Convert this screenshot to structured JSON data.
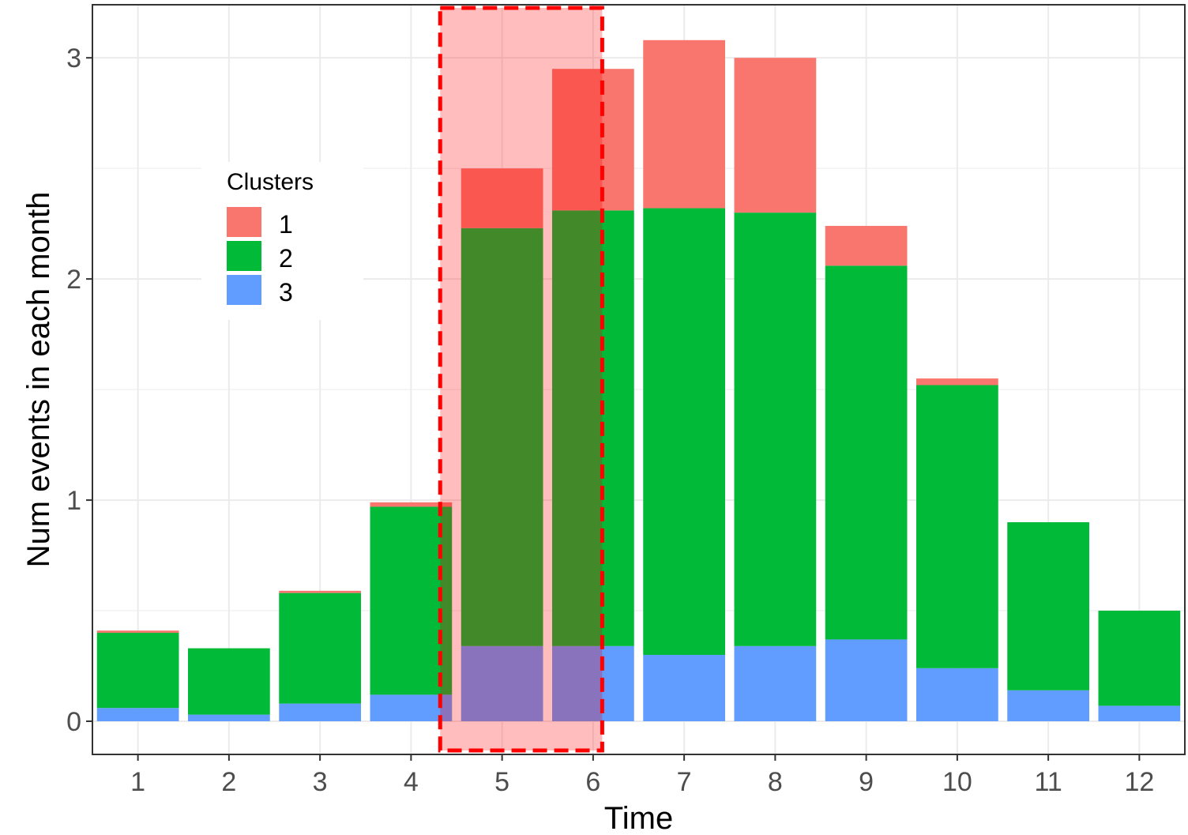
{
  "chart_data": {
    "type": "bar",
    "stacked": true,
    "categories": [
      "1",
      "2",
      "3",
      "4",
      "5",
      "6",
      "7",
      "8",
      "9",
      "10",
      "11",
      "12"
    ],
    "series": [
      {
        "name": "3",
        "values": [
          0.06,
          0.03,
          0.08,
          0.12,
          0.34,
          0.34,
          0.3,
          0.34,
          0.37,
          0.24,
          0.14,
          0.07
        ]
      },
      {
        "name": "2",
        "values": [
          0.34,
          0.3,
          0.5,
          0.85,
          1.89,
          1.97,
          2.02,
          1.96,
          1.69,
          1.28,
          0.76,
          0.43
        ]
      },
      {
        "name": "1",
        "values": [
          0.01,
          0.0,
          0.01,
          0.02,
          0.27,
          0.64,
          0.76,
          0.7,
          0.18,
          0.03,
          0.0,
          0.0
        ]
      }
    ],
    "colors": {
      "1": "#F8766D",
      "2": "#00BA38",
      "3": "#619CFF"
    },
    "xlabel": "Time",
    "ylabel": "Num events in each month",
    "yticks": [
      "0",
      "1",
      "2",
      "3"
    ],
    "ylim": [
      -0.15,
      3.24
    ],
    "grid": true,
    "legend": {
      "title": "Clusters",
      "placement": "top-left inside",
      "entries": [
        "1",
        "2",
        "3"
      ]
    },
    "highlight": {
      "categories": [
        "5",
        "6"
      ],
      "color": "#FF0000",
      "style": "dashed box with translucent red fill"
    }
  }
}
